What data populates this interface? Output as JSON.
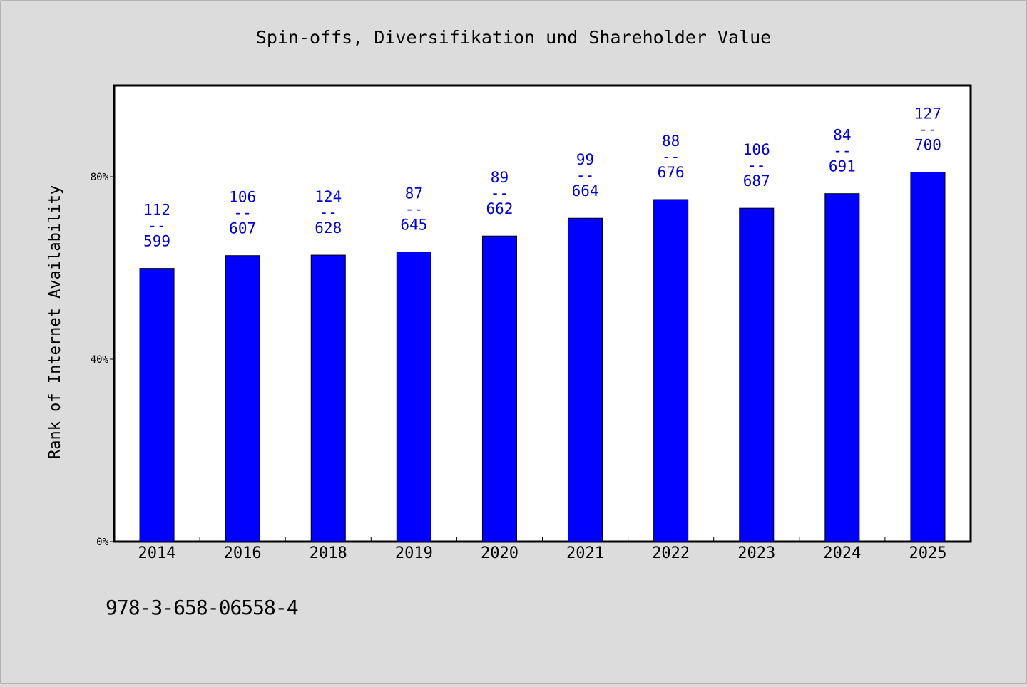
{
  "chart_data": {
    "type": "bar",
    "title": "Spin-offs, Diversifikation und Shareholder Value",
    "xlabel": "",
    "ylabel": "Rank of Internet Availability",
    "categories": [
      "2014",
      "2016",
      "2018",
      "2019",
      "2020",
      "2021",
      "2022",
      "2023",
      "2024",
      "2025"
    ],
    "values": [
      59.9,
      62.7,
      62.8,
      63.5,
      67.0,
      70.9,
      75.0,
      73.1,
      76.3,
      81.0
    ],
    "data_labels": [
      {
        "top": "112",
        "sep": "--",
        "bottom": "599"
      },
      {
        "top": "106",
        "sep": "--",
        "bottom": "607"
      },
      {
        "top": "124",
        "sep": "--",
        "bottom": "628"
      },
      {
        "top": "87",
        "sep": "--",
        "bottom": "645"
      },
      {
        "top": "89",
        "sep": "--",
        "bottom": "662"
      },
      {
        "top": "99",
        "sep": "--",
        "bottom": "664"
      },
      {
        "top": "88",
        "sep": "--",
        "bottom": "676"
      },
      {
        "top": "106",
        "sep": "--",
        "bottom": "687"
      },
      {
        "top": "84",
        "sep": "--",
        "bottom": "691"
      },
      {
        "top": "127",
        "sep": "--",
        "bottom": "700"
      }
    ],
    "ylim": [
      0,
      100
    ],
    "yticks": [
      {
        "value": 0,
        "label": "0%"
      },
      {
        "value": 40,
        "label": "40%"
      },
      {
        "value": 80,
        "label": "80%"
      }
    ],
    "grid": false,
    "colors": {
      "bar": "#0000ff",
      "label": "#0000cc",
      "plot_background": "#ffffff",
      "page_background": "#dcdcdc"
    }
  },
  "footer": {
    "code": "978-3-658-06558-4"
  }
}
